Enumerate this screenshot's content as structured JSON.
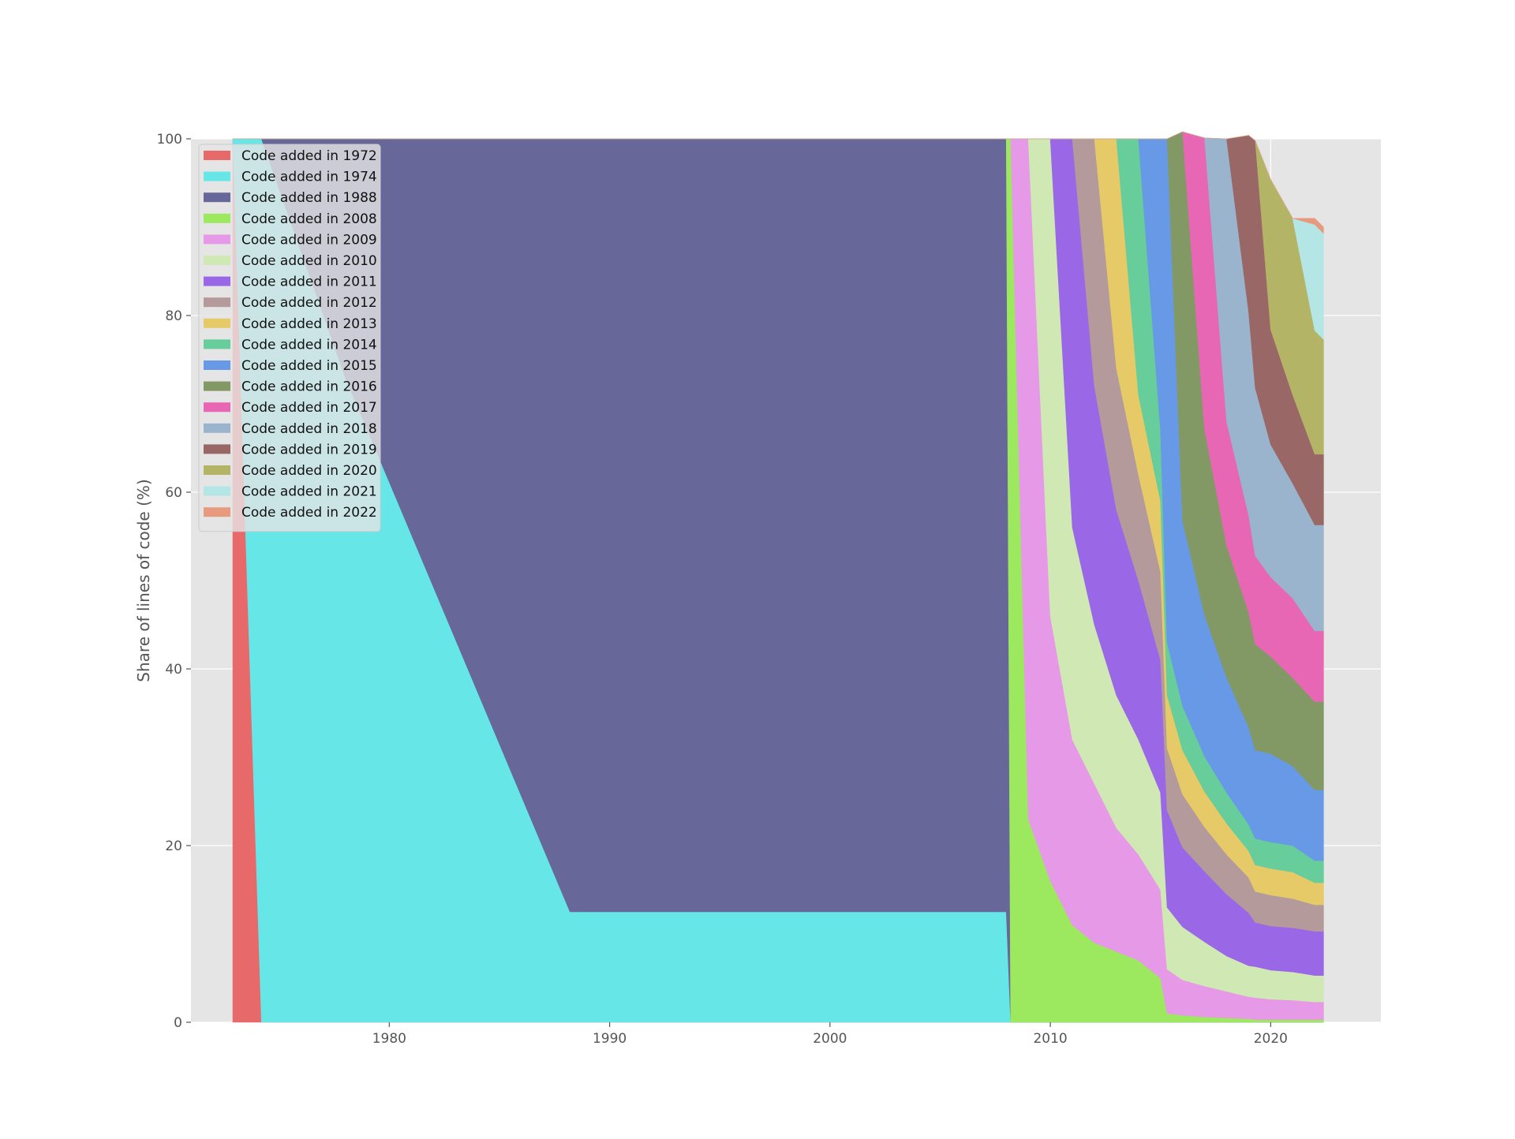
{
  "chart_data": {
    "type": "area",
    "stacked": true,
    "normalized_percent": true,
    "title": "",
    "xlabel": "",
    "ylabel": "Share of lines of code (%)",
    "xlim": [
      1971,
      2025
    ],
    "ylim": [
      0,
      100
    ],
    "x_ticks": [
      1980,
      1990,
      2000,
      2010,
      2020
    ],
    "y_ticks": [
      0,
      20,
      40,
      60,
      80,
      100
    ],
    "grid": true,
    "legend_position": "top-left",
    "x": [
      1972.9,
      1974.2,
      1978.0,
      1988.2,
      2008.0,
      2008.2,
      2009.0,
      2010.0,
      2011.0,
      2012.0,
      2013.0,
      2014.0,
      2015.0,
      2015.3,
      2016.0,
      2017.0,
      2018.0,
      2019.0,
      2019.3,
      2020.0,
      2021.0,
      2022.0,
      2022.4
    ],
    "series": [
      {
        "name": "Code added in 1972",
        "color": "#e8696a",
        "values": [
          100,
          0,
          0,
          0,
          0,
          0,
          0,
          0,
          0,
          0,
          0,
          0,
          0,
          0,
          0,
          0,
          0,
          0,
          0,
          0,
          0,
          0,
          0
        ]
      },
      {
        "name": "Code added in 1974",
        "color": "#67e6e8",
        "values": [
          0,
          100,
          73,
          12.5,
          12.5,
          0,
          0,
          0,
          0,
          0,
          0,
          0,
          0,
          0,
          0,
          0,
          0,
          0,
          0,
          0,
          0,
          0,
          0
        ]
      },
      {
        "name": "Code added in 1988",
        "color": "#676899",
        "values": [
          0,
          0,
          27,
          87.5,
          87.5,
          0,
          0,
          0,
          0,
          0,
          0,
          0,
          0,
          0,
          0,
          0,
          0,
          0,
          0,
          0,
          0,
          0,
          0
        ]
      },
      {
        "name": "Code added in 2008",
        "color": "#9ce85f",
        "values": [
          0,
          0,
          0,
          0,
          0,
          100,
          23,
          16,
          11,
          9,
          8,
          7,
          5,
          1,
          0.8,
          0.6,
          0.5,
          0.4,
          0.3,
          0.3,
          0.3,
          0.3,
          0.3
        ]
      },
      {
        "name": "Code added in 2009",
        "color": "#e699e7",
        "values": [
          0,
          0,
          0,
          0,
          0,
          0,
          77,
          30,
          21,
          18,
          14,
          12,
          10,
          5,
          4,
          3.5,
          3,
          2.5,
          2.5,
          2.3,
          2.2,
          2,
          2
        ]
      },
      {
        "name": "Code added in 2010",
        "color": "#cfe8b4",
        "values": [
          0,
          0,
          0,
          0,
          0,
          0,
          0,
          54,
          24,
          18,
          15,
          13,
          11,
          7,
          6,
          5,
          4,
          3.5,
          3.5,
          3.3,
          3.2,
          3,
          3
        ]
      },
      {
        "name": "Code added in 2011",
        "color": "#9a67e6",
        "values": [
          0,
          0,
          0,
          0,
          0,
          0,
          0,
          0,
          44,
          27,
          21,
          18,
          15,
          11,
          9,
          8,
          7,
          6,
          5,
          5,
          5,
          5,
          5
        ]
      },
      {
        "name": "Code added in 2012",
        "color": "#b49a9a",
        "values": [
          0,
          0,
          0,
          0,
          0,
          0,
          0,
          0,
          0,
          28,
          16,
          12,
          10,
          7,
          6,
          5,
          4.5,
          4,
          3.5,
          3.5,
          3.3,
          3,
          3
        ]
      },
      {
        "name": "Code added in 2013",
        "color": "#e6ca68",
        "values": [
          0,
          0,
          0,
          0,
          0,
          0,
          0,
          0,
          0,
          0,
          26,
          9,
          8,
          6,
          5,
          4,
          3.5,
          3,
          3,
          3,
          3,
          2.5,
          2.5
        ]
      },
      {
        "name": "Code added in 2014",
        "color": "#67cd9a",
        "values": [
          0,
          0,
          0,
          0,
          0,
          0,
          0,
          0,
          0,
          0,
          0,
          29,
          8,
          6,
          5,
          4,
          3.5,
          3,
          3,
          3,
          3,
          2.5,
          2.5
        ]
      },
      {
        "name": "Code added in 2015",
        "color": "#6899e6",
        "values": [
          0,
          0,
          0,
          0,
          0,
          0,
          0,
          0,
          0,
          0,
          0,
          0,
          33,
          57,
          21,
          16,
          13,
          11,
          10,
          10,
          9,
          8,
          8
        ]
      },
      {
        "name": "Code added in 2016",
        "color": "#829966",
        "values": [
          0,
          0,
          0,
          0,
          0,
          0,
          0,
          0,
          0,
          0,
          0,
          0,
          0,
          0,
          44,
          21,
          15,
          13,
          12,
          11,
          10,
          10,
          10
        ]
      },
      {
        "name": "Code added in 2017",
        "color": "#e867b4",
        "values": [
          0,
          0,
          0,
          0,
          0,
          0,
          0,
          0,
          0,
          0,
          0,
          0,
          0,
          0,
          0,
          33,
          14,
          11,
          10,
          9,
          9,
          8,
          8
        ]
      },
      {
        "name": "Code added in 2018",
        "color": "#9ab4cd",
        "values": [
          0,
          0,
          0,
          0,
          0,
          0,
          0,
          0,
          0,
          0,
          0,
          0,
          0,
          0,
          0,
          0,
          32,
          23,
          19,
          15,
          13,
          12,
          12
        ]
      },
      {
        "name": "Code added in 2019",
        "color": "#9a6767",
        "values": [
          0,
          0,
          0,
          0,
          0,
          0,
          0,
          0,
          0,
          0,
          0,
          0,
          0,
          0,
          0,
          0,
          0,
          20,
          28,
          13,
          10,
          8,
          8
        ]
      },
      {
        "name": "Code added in 2020",
        "color": "#b4b467",
        "values": [
          0,
          0,
          0,
          0,
          0,
          0,
          0,
          0,
          0,
          0,
          0,
          0,
          0,
          0,
          0,
          0,
          0,
          0,
          0,
          17,
          20,
          14,
          13
        ]
      },
      {
        "name": "Code added in 2021",
        "color": "#b4e6e6",
        "values": [
          0,
          0,
          0,
          0,
          0,
          0,
          0,
          0,
          0,
          0,
          0,
          0,
          0,
          0,
          0,
          0,
          0,
          0,
          0,
          0,
          0,
          12,
          12
        ]
      },
      {
        "name": "Code added in 2022",
        "color": "#e89a7e",
        "values": [
          0,
          0,
          0,
          0,
          0,
          0,
          0,
          0,
          0,
          0,
          0,
          0,
          0,
          0,
          0,
          0,
          0,
          0,
          0,
          0,
          0,
          0.7,
          0.7
        ]
      }
    ]
  },
  "style": {
    "plot_background": "#e5e5e5",
    "grid_color": "#ffffff",
    "legend_background": "#e5e5e5"
  }
}
